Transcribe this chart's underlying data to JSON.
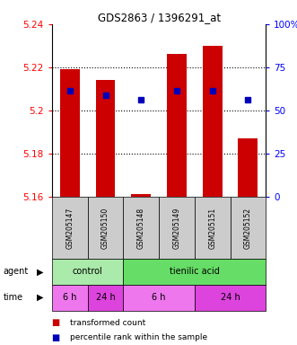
{
  "title": "GDS2863 / 1396291_at",
  "samples": [
    "GSM205147",
    "GSM205150",
    "GSM205148",
    "GSM205149",
    "GSM205151",
    "GSM205152"
  ],
  "bar_values": [
    5.219,
    5.214,
    5.161,
    5.226,
    5.23,
    5.187
  ],
  "bar_base": 5.16,
  "percentile_left": [
    5.209,
    5.207,
    5.205,
    5.209,
    5.209,
    5.205
  ],
  "ylim_left": [
    5.16,
    5.24
  ],
  "ylim_right": [
    0,
    100
  ],
  "yticks_left": [
    5.16,
    5.18,
    5.2,
    5.22,
    5.24
  ],
  "yticks_right": [
    0,
    25,
    50,
    75,
    100
  ],
  "bar_color": "#CC0000",
  "dot_color": "#0000BB",
  "agent_control_color": "#AAEAAA",
  "agent_treat_color": "#66DD66",
  "time_light_color": "#EE77EE",
  "time_dark_color": "#DD44DD",
  "sample_bg_color": "#CCCCCC",
  "legend_items": [
    {
      "label": "transformed count",
      "color": "#CC0000"
    },
    {
      "label": "percentile rank within the sample",
      "color": "#0000BB"
    }
  ]
}
